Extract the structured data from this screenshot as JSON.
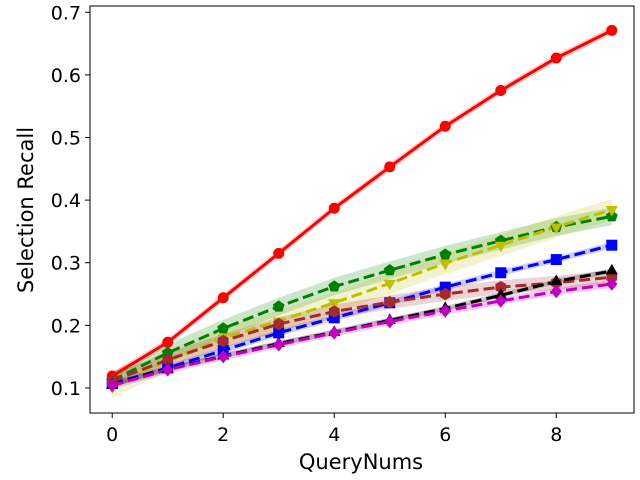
{
  "chart_data": {
    "type": "line",
    "title": "",
    "xlabel": "QueryNums",
    "ylabel": "Selection Recall",
    "xlim": [
      -0.4,
      9.4
    ],
    "ylim": [
      0.06,
      0.71
    ],
    "x_ticks": [
      0,
      2,
      4,
      6,
      8
    ],
    "y_ticks": [
      0.1,
      0.2,
      0.3,
      0.4,
      0.5,
      0.6,
      0.7
    ],
    "grid": false,
    "legend": "none",
    "x": [
      0,
      1,
      2,
      3,
      4,
      5,
      6,
      7,
      8,
      9
    ],
    "series": [
      {
        "color": "#ff0000",
        "marker": "circle",
        "dash": "solid",
        "values": [
          0.119,
          0.173,
          0.244,
          0.315,
          0.387,
          0.453,
          0.518,
          0.575,
          0.627,
          0.671
        ],
        "band": 0.006
      },
      {
        "color": "#008000",
        "marker": "pentagon",
        "dash": "dashed",
        "values": [
          0.112,
          0.156,
          0.195,
          0.23,
          0.262,
          0.288,
          0.313,
          0.335,
          0.357,
          0.374
        ],
        "band": 0.014
      },
      {
        "color": "#bfbf00",
        "marker": "triangle-down",
        "dash": "dashed",
        "values": [
          0.102,
          0.143,
          0.18,
          0.207,
          0.236,
          0.267,
          0.299,
          0.328,
          0.357,
          0.385
        ],
        "band": 0.017
      },
      {
        "color": "#0000ff",
        "marker": "square",
        "dash": "dashed",
        "values": [
          0.107,
          0.132,
          0.16,
          0.188,
          0.212,
          0.236,
          0.261,
          0.284,
          0.305,
          0.328
        ],
        "band": 0.005
      },
      {
        "color": "#a52a2a",
        "marker": "hexagon",
        "dash": "dashed",
        "values": [
          0.111,
          0.145,
          0.175,
          0.202,
          0.222,
          0.237,
          0.25,
          0.261,
          0.268,
          0.277
        ],
        "band": 0.011
      },
      {
        "color": "#000000",
        "marker": "triangle-up",
        "dash": "dashed",
        "values": [
          0.105,
          0.13,
          0.151,
          0.171,
          0.189,
          0.208,
          0.227,
          0.248,
          0.27,
          0.287
        ],
        "band": 0.004
      },
      {
        "color": "#c000c0",
        "marker": "diamond",
        "dash": "dashed",
        "values": [
          0.104,
          0.129,
          0.15,
          0.169,
          0.188,
          0.206,
          0.223,
          0.239,
          0.254,
          0.266
        ],
        "band": 0.006
      }
    ]
  }
}
